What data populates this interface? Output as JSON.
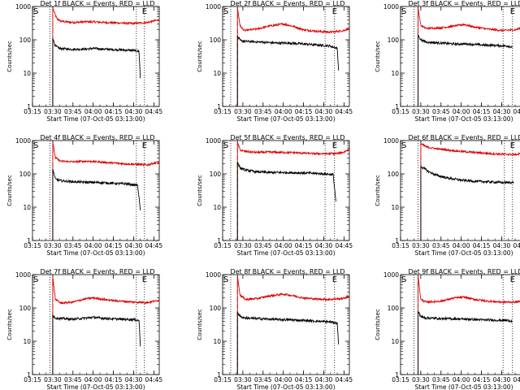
{
  "chart_data": [
    {
      "type": "line",
      "title": "Det 1f BLACK = Events, RED = LLD",
      "xlabel": "Start Time (07-Oct-05 03:13:00)",
      "ylabel": "Counts/sec",
      "y_scale": "log",
      "ylim": [
        1,
        1000
      ],
      "y_ticks": [
        "1",
        "10",
        "100",
        "1000"
      ],
      "xlim": [
        "03:15",
        "04:49"
      ],
      "x_ticks": [
        "03:15",
        "03:30",
        "03:45",
        "04:00",
        "04:15",
        "04:30",
        "04:45"
      ],
      "markers": {
        "S": "03:15",
        "E": "04:38"
      },
      "vlines": [
        {
          "time": "03:28",
          "style": "dotted"
        },
        {
          "time": "03:30",
          "style": "dashed"
        },
        {
          "time": "04:32",
          "style": "dotted"
        },
        {
          "time": "04:38",
          "style": "dotted"
        }
      ],
      "series": [
        {
          "color": "#dd0000",
          "start": "03:30",
          "end": "04:49",
          "x": [
            "03:30",
            "03:33",
            "03:36",
            "03:45",
            "03:55",
            "04:00",
            "04:10",
            "04:20",
            "04:30",
            "04:40",
            "04:49"
          ],
          "y": [
            900,
            430,
            360,
            330,
            350,
            345,
            330,
            320,
            310,
            330,
            400
          ]
        },
        {
          "color": "#000000",
          "start": "03:30",
          "end": "04:35",
          "x": [
            "03:30",
            "03:32",
            "03:35",
            "03:45",
            "03:55",
            "04:00",
            "04:10",
            "04:20",
            "04:30",
            "04:34",
            "04:35"
          ],
          "y": [
            110,
            65,
            55,
            52,
            53,
            55,
            52,
            50,
            48,
            45,
            7
          ]
        }
      ]
    },
    {
      "type": "line",
      "title": "Det 2f BLACK = Events, RED = LLD",
      "xlabel": "Start Time (07-Oct-05 03:13:00)",
      "ylabel": "Counts/sec",
      "y_scale": "log",
      "ylim": [
        1,
        1000
      ],
      "y_ticks": [
        "1",
        "10",
        "100",
        "1000"
      ],
      "xlim": [
        "03:15",
        "04:49"
      ],
      "x_ticks": [
        "03:15",
        "03:30",
        "03:45",
        "04:00",
        "04:15",
        "04:30",
        "04:45"
      ],
      "markers": {
        "S": "03:15",
        "E": "04:38"
      },
      "vlines": [
        {
          "time": "03:21",
          "style": "dotted"
        },
        {
          "time": "03:26",
          "style": "dashed"
        },
        {
          "time": "04:31",
          "style": "dotted"
        },
        {
          "time": "04:38",
          "style": "dotted"
        }
      ],
      "series": [
        {
          "color": "#dd0000",
          "start": "03:26",
          "end": "04:49",
          "x": [
            "03:26",
            "03:28",
            "03:31",
            "03:40",
            "03:50",
            "04:00",
            "04:08",
            "04:15",
            "04:25",
            "04:35",
            "04:45",
            "04:49"
          ],
          "y": [
            900,
            260,
            190,
            210,
            260,
            300,
            250,
            200,
            180,
            170,
            190,
            230
          ]
        },
        {
          "color": "#000000",
          "start": "03:26",
          "end": "04:41",
          "x": [
            "03:26",
            "03:28",
            "03:32",
            "03:45",
            "03:55",
            "04:05",
            "04:15",
            "04:25",
            "04:35",
            "04:40",
            "04:41"
          ],
          "y": [
            130,
            95,
            90,
            85,
            80,
            80,
            75,
            70,
            65,
            55,
            12
          ]
        }
      ]
    },
    {
      "type": "line",
      "title": "Det 3f BLACK = Events, RED = LLD",
      "xlabel": "Start Time (07-Oct-05 03:13:00)",
      "ylabel": "Counts/sec",
      "y_scale": "log",
      "ylim": [
        1,
        1000
      ],
      "y_ticks": [
        "1",
        "10",
        "100",
        "1000"
      ],
      "xlim": [
        "03:15",
        "04:49"
      ],
      "x_ticks": [
        "03:15",
        "03:30",
        "03:45",
        "04:00",
        "04:15",
        "04:30",
        "04:45"
      ],
      "markers": {
        "S": "03:15",
        "E": "04:38"
      },
      "vlines": [
        {
          "time": "03:25",
          "style": "dotted"
        },
        {
          "time": "03:28",
          "style": "dashed"
        },
        {
          "time": "04:31",
          "style": "dotted"
        },
        {
          "time": "04:38",
          "style": "dotted"
        }
      ],
      "series": [
        {
          "color": "#dd0000",
          "start": "03:28",
          "end": "04:49",
          "x": [
            "03:28",
            "03:30",
            "03:34",
            "03:45",
            "03:55",
            "04:02",
            "04:10",
            "04:20",
            "04:30",
            "04:40",
            "04:49"
          ],
          "y": [
            900,
            270,
            220,
            230,
            260,
            290,
            240,
            210,
            190,
            200,
            260
          ]
        },
        {
          "color": "#000000",
          "start": "03:28",
          "end": "04:38",
          "x": [
            "03:28",
            "03:30",
            "03:34",
            "03:45",
            "03:55",
            "04:05",
            "04:15",
            "04:25",
            "04:35",
            "04:38"
          ],
          "y": [
            140,
            100,
            85,
            80,
            75,
            75,
            70,
            68,
            65,
            60
          ]
        }
      ]
    },
    {
      "type": "line",
      "title": "Det 4f BLACK = Events, RED = LLD",
      "xlabel": "Start Time (07-Oct-05 03:13:00)",
      "ylabel": "Counts/sec",
      "y_scale": "log",
      "ylim": [
        1,
        1000
      ],
      "y_ticks": [
        "1",
        "10",
        "100",
        "1000"
      ],
      "xlim": [
        "03:15",
        "04:49"
      ],
      "x_ticks": [
        "03:15",
        "03:30",
        "03:45",
        "04:00",
        "04:15",
        "04:30",
        "04:45"
      ],
      "markers": {
        "S": "03:15",
        "E": "04:38"
      },
      "vlines": [
        {
          "time": "03:28",
          "style": "dotted"
        },
        {
          "time": "03:30",
          "style": "dashed"
        },
        {
          "time": "04:32",
          "style": "dotted"
        },
        {
          "time": "04:38",
          "style": "dotted"
        }
      ],
      "series": [
        {
          "color": "#dd0000",
          "start": "03:30",
          "end": "04:49",
          "x": [
            "03:30",
            "03:32",
            "03:36",
            "03:45",
            "03:55",
            "04:00",
            "04:10",
            "04:20",
            "04:30",
            "04:40",
            "04:49"
          ],
          "y": [
            900,
            300,
            240,
            230,
            240,
            235,
            220,
            205,
            195,
            185,
            230
          ]
        },
        {
          "color": "#000000",
          "start": "03:30",
          "end": "04:35",
          "x": [
            "03:30",
            "03:32",
            "03:36",
            "03:45",
            "03:55",
            "04:05",
            "04:15",
            "04:25",
            "04:33",
            "04:35"
          ],
          "y": [
            140,
            70,
            62,
            58,
            56,
            55,
            52,
            50,
            45,
            8
          ]
        }
      ]
    },
    {
      "type": "line",
      "title": "Det 5f BLACK = Events, RED = LLD",
      "xlabel": "Start Time (07-Oct-05 03:13:00)",
      "ylabel": "Counts/sec",
      "y_scale": "log",
      "ylim": [
        1,
        1000
      ],
      "y_ticks": [
        "1",
        "10",
        "100",
        "1000"
      ],
      "xlim": [
        "03:15",
        "04:49"
      ],
      "x_ticks": [
        "03:15",
        "03:30",
        "03:45",
        "04:00",
        "04:15",
        "04:30",
        "04:45"
      ],
      "markers": {
        "S": "03:15",
        "E": "04:38"
      },
      "vlines": [
        {
          "time": "03:21",
          "style": "dotted"
        },
        {
          "time": "03:26",
          "style": "dashed"
        },
        {
          "time": "04:31",
          "style": "dotted"
        },
        {
          "time": "04:38",
          "style": "dotted"
        }
      ],
      "series": [
        {
          "color": "#dd0000",
          "start": "03:26",
          "end": "04:49",
          "x": [
            "03:26",
            "03:28",
            "03:32",
            "03:40",
            "03:50",
            "04:00",
            "04:10",
            "04:20",
            "04:30",
            "04:40",
            "04:45",
            "04:49"
          ],
          "y": [
            900,
            520,
            470,
            440,
            450,
            440,
            430,
            410,
            400,
            410,
            450,
            560
          ]
        },
        {
          "color": "#000000",
          "start": "03:26",
          "end": "04:39",
          "x": [
            "03:26",
            "03:28",
            "03:32",
            "03:40",
            "03:50",
            "04:00",
            "04:10",
            "04:20",
            "04:30",
            "04:37",
            "04:39"
          ],
          "y": [
            230,
            150,
            130,
            115,
            110,
            110,
            108,
            105,
            100,
            95,
            15
          ]
        }
      ]
    },
    {
      "type": "line",
      "title": "Det 6f BLACK = Events, RED = LLD",
      "xlabel": "Start Time (07-Oct-05 03:13:00)",
      "ylabel": "Counts/sec",
      "y_scale": "log",
      "ylim": [
        1,
        1000
      ],
      "y_ticks": [
        "1",
        "10",
        "100",
        "1000"
      ],
      "xlim": [
        "03:15",
        "04:49"
      ],
      "x_ticks": [
        "03:15",
        "03:30",
        "03:45",
        "04:00",
        "04:15",
        "04:30",
        "04:45"
      ],
      "markers": {
        "S": "03:15",
        "E": "04:38"
      },
      "vlines": [
        {
          "time": "03:28",
          "style": "dotted"
        },
        {
          "time": "03:30",
          "style": "dashed"
        },
        {
          "time": "04:32",
          "style": "dotted"
        },
        {
          "time": "04:38",
          "style": "dotted"
        }
      ],
      "series": [
        {
          "color": "#dd0000",
          "start": "03:30",
          "end": "04:49",
          "x": [
            "03:30",
            "03:34",
            "03:40",
            "03:50",
            "04:00",
            "04:10",
            "04:20",
            "04:30",
            "04:40",
            "04:49"
          ],
          "y": [
            800,
            650,
            580,
            520,
            470,
            440,
            410,
            390,
            380,
            430
          ]
        },
        {
          "color": "#000000",
          "start": "03:30",
          "end": "04:39",
          "x": [
            "03:30",
            "03:32",
            "03:36",
            "03:42",
            "03:50",
            "04:00",
            "04:10",
            "04:20",
            "04:30",
            "04:39"
          ],
          "y": [
            170,
            150,
            115,
            90,
            75,
            65,
            60,
            58,
            55,
            55
          ]
        }
      ]
    },
    {
      "type": "line",
      "title": "Det 7f BLACK = Events, RED = LLD",
      "xlabel": "Start Time (07-Oct-05 03:13:00)",
      "ylabel": "Counts/sec",
      "y_scale": "log",
      "ylim": [
        1,
        1000
      ],
      "y_ticks": [
        "1",
        "10",
        "100",
        "1000"
      ],
      "xlim": [
        "03:15",
        "04:49"
      ],
      "x_ticks": [
        "03:15",
        "03:30",
        "03:45",
        "04:00",
        "04:15",
        "04:30",
        "04:45"
      ],
      "markers": {
        "S": "03:15",
        "E": "04:38"
      },
      "vlines": [
        {
          "time": "03:28",
          "style": "dotted"
        },
        {
          "time": "03:30",
          "style": "dashed"
        },
        {
          "time": "04:32",
          "style": "dotted"
        },
        {
          "time": "04:38",
          "style": "dotted"
        }
      ],
      "series": [
        {
          "color": "#dd0000",
          "start": "03:30",
          "end": "04:49",
          "x": [
            "03:30",
            "03:32",
            "03:36",
            "03:45",
            "03:55",
            "04:00",
            "04:10",
            "04:20",
            "04:30",
            "04:40",
            "04:49"
          ],
          "y": [
            900,
            180,
            140,
            150,
            190,
            200,
            175,
            160,
            150,
            145,
            170
          ]
        },
        {
          "color": "#000000",
          "start": "03:30",
          "end": "04:35",
          "x": [
            "03:30",
            "03:32",
            "03:36",
            "03:45",
            "03:55",
            "04:00",
            "04:10",
            "04:20",
            "04:30",
            "04:34",
            "04:35"
          ],
          "y": [
            60,
            50,
            48,
            46,
            50,
            52,
            48,
            46,
            45,
            42,
            7
          ]
        }
      ]
    },
    {
      "type": "line",
      "title": "Det 8f BLACK = Events, RED = LLD",
      "xlabel": "Start Time (07-Oct-05 03:13:00)",
      "ylabel": "Counts/sec",
      "y_scale": "log",
      "ylim": [
        1,
        1000
      ],
      "y_ticks": [
        "1",
        "10",
        "100",
        "1000"
      ],
      "xlim": [
        "03:15",
        "04:49"
      ],
      "x_ticks": [
        "03:15",
        "03:30",
        "03:45",
        "04:00",
        "04:15",
        "04:30",
        "04:45"
      ],
      "markers": {
        "S": "03:15",
        "E": "04:38"
      },
      "vlines": [
        {
          "time": "03:21",
          "style": "dotted"
        },
        {
          "time": "03:26",
          "style": "dashed"
        },
        {
          "time": "04:31",
          "style": "dotted"
        },
        {
          "time": "04:38",
          "style": "dotted"
        }
      ],
      "series": [
        {
          "color": "#dd0000",
          "start": "03:26",
          "end": "04:49",
          "x": [
            "03:26",
            "03:28",
            "03:32",
            "03:40",
            "03:50",
            "04:00",
            "04:08",
            "04:15",
            "04:25",
            "04:35",
            "04:45",
            "04:49"
          ],
          "y": [
            900,
            240,
            180,
            190,
            230,
            260,
            230,
            200,
            185,
            180,
            195,
            230
          ]
        },
        {
          "color": "#000000",
          "start": "03:26",
          "end": "04:41",
          "x": [
            "03:26",
            "03:28",
            "03:32",
            "03:45",
            "03:55",
            "04:05",
            "04:15",
            "04:25",
            "04:35",
            "04:40",
            "04:41"
          ],
          "y": [
            75,
            55,
            50,
            47,
            45,
            44,
            42,
            40,
            38,
            35,
            8
          ]
        }
      ]
    },
    {
      "type": "line",
      "title": "Det 9f BLACK = Events, RED = LLD",
      "xlabel": "Start Time (07-Oct-05 03:13:00)",
      "ylabel": "Counts/sec",
      "y_scale": "log",
      "ylim": [
        1,
        1000
      ],
      "y_ticks": [
        "1",
        "10",
        "100",
        "1000"
      ],
      "xlim": [
        "03:15",
        "04:49"
      ],
      "x_ticks": [
        "03:15",
        "03:30",
        "03:45",
        "04:00",
        "04:15",
        "04:30",
        "04:45"
      ],
      "markers": {
        "S": "03:15",
        "E": "04:38"
      },
      "vlines": [
        {
          "time": "03:25",
          "style": "dotted"
        },
        {
          "time": "03:28",
          "style": "dashed"
        },
        {
          "time": "04:31",
          "style": "dotted"
        },
        {
          "time": "04:38",
          "style": "dotted"
        }
      ],
      "series": [
        {
          "color": "#dd0000",
          "start": "03:28",
          "end": "04:49",
          "x": [
            "03:28",
            "03:30",
            "03:34",
            "03:45",
            "03:55",
            "04:02",
            "04:10",
            "04:20",
            "04:30",
            "04:40",
            "04:49"
          ],
          "y": [
            900,
            180,
            150,
            160,
            200,
            210,
            180,
            160,
            150,
            150,
            165
          ]
        },
        {
          "color": "#000000",
          "start": "03:28",
          "end": "04:38",
          "x": [
            "03:28",
            "03:30",
            "03:34",
            "03:45",
            "03:55",
            "04:05",
            "04:15",
            "04:25",
            "04:35",
            "04:38"
          ],
          "y": [
            80,
            55,
            50,
            48,
            47,
            46,
            44,
            43,
            42,
            40
          ]
        }
      ]
    }
  ]
}
